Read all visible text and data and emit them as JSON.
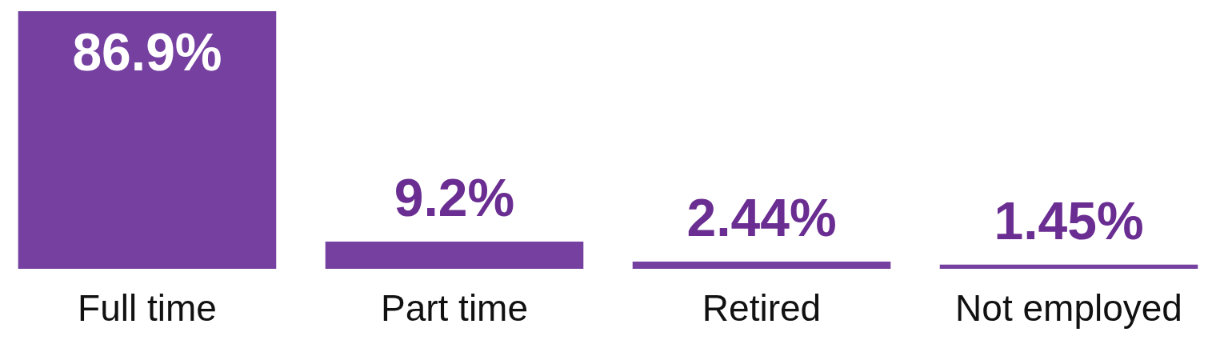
{
  "chart_data": {
    "type": "bar",
    "categories": [
      "Full time",
      "Part time",
      "Retired",
      "Not employed"
    ],
    "values": [
      86.9,
      9.2,
      2.44,
      1.45
    ],
    "value_labels": [
      "86.9%",
      "9.2%",
      "2.44%",
      "1.45%"
    ],
    "color": "#7540a0"
  }
}
